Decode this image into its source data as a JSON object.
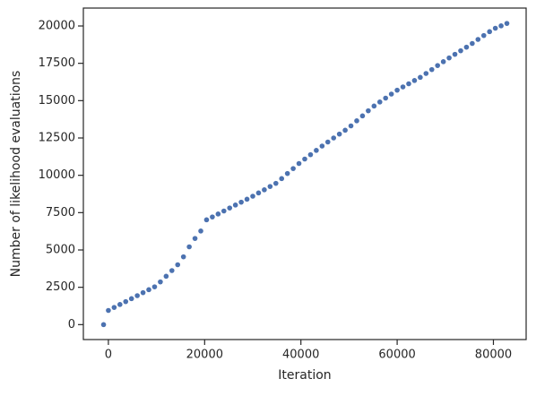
{
  "chart_data": {
    "type": "scatter",
    "xlabel": "Iteration",
    "ylabel": "Number of likelihood evaluations",
    "color": "#4c72b0",
    "x": [
      -1000,
      0,
      1200,
      2400,
      3600,
      4800,
      6000,
      7200,
      8400,
      9600,
      10800,
      12000,
      13200,
      14400,
      15600,
      16800,
      18000,
      19200,
      20400,
      21600,
      22800,
      24000,
      25200,
      26400,
      27600,
      28800,
      30000,
      31200,
      32400,
      33600,
      34800,
      36000,
      37200,
      38400,
      39600,
      40800,
      42000,
      43200,
      44400,
      45600,
      46800,
      48000,
      49200,
      50400,
      51600,
      52800,
      54000,
      55200,
      56400,
      57600,
      58800,
      60000,
      61200,
      62400,
      63600,
      64800,
      66000,
      67200,
      68400,
      69600,
      70800,
      72000,
      73200,
      74400,
      75600,
      76800,
      78000,
      79200,
      80400,
      81600,
      82800
    ],
    "values": [
      0,
      950,
      1150,
      1350,
      1540,
      1740,
      1940,
      2140,
      2340,
      2530,
      2860,
      3240,
      3620,
      4010,
      4540,
      5210,
      5770,
      6270,
      7020,
      7210,
      7410,
      7610,
      7810,
      8010,
      8200,
      8400,
      8600,
      8820,
      9030,
      9250,
      9460,
      9780,
      10120,
      10450,
      10790,
      11090,
      11380,
      11670,
      11960,
      12230,
      12500,
      12760,
      13020,
      13310,
      13650,
      13980,
      14320,
      14640,
      14910,
      15170,
      15440,
      15700,
      15920,
      16130,
      16350,
      16560,
      16820,
      17080,
      17350,
      17610,
      17860,
      18100,
      18340,
      18580,
      18830,
      19100,
      19360,
      19620,
      19850,
      20010,
      20170
    ],
    "xlim": [
      -5200,
      86800
    ],
    "ylim": [
      -1000,
      21200
    ],
    "xticks": [
      0,
      20000,
      40000,
      60000,
      80000
    ],
    "yticks": [
      0,
      2500,
      5000,
      7500,
      10000,
      12500,
      15000,
      17500,
      20000
    ]
  }
}
